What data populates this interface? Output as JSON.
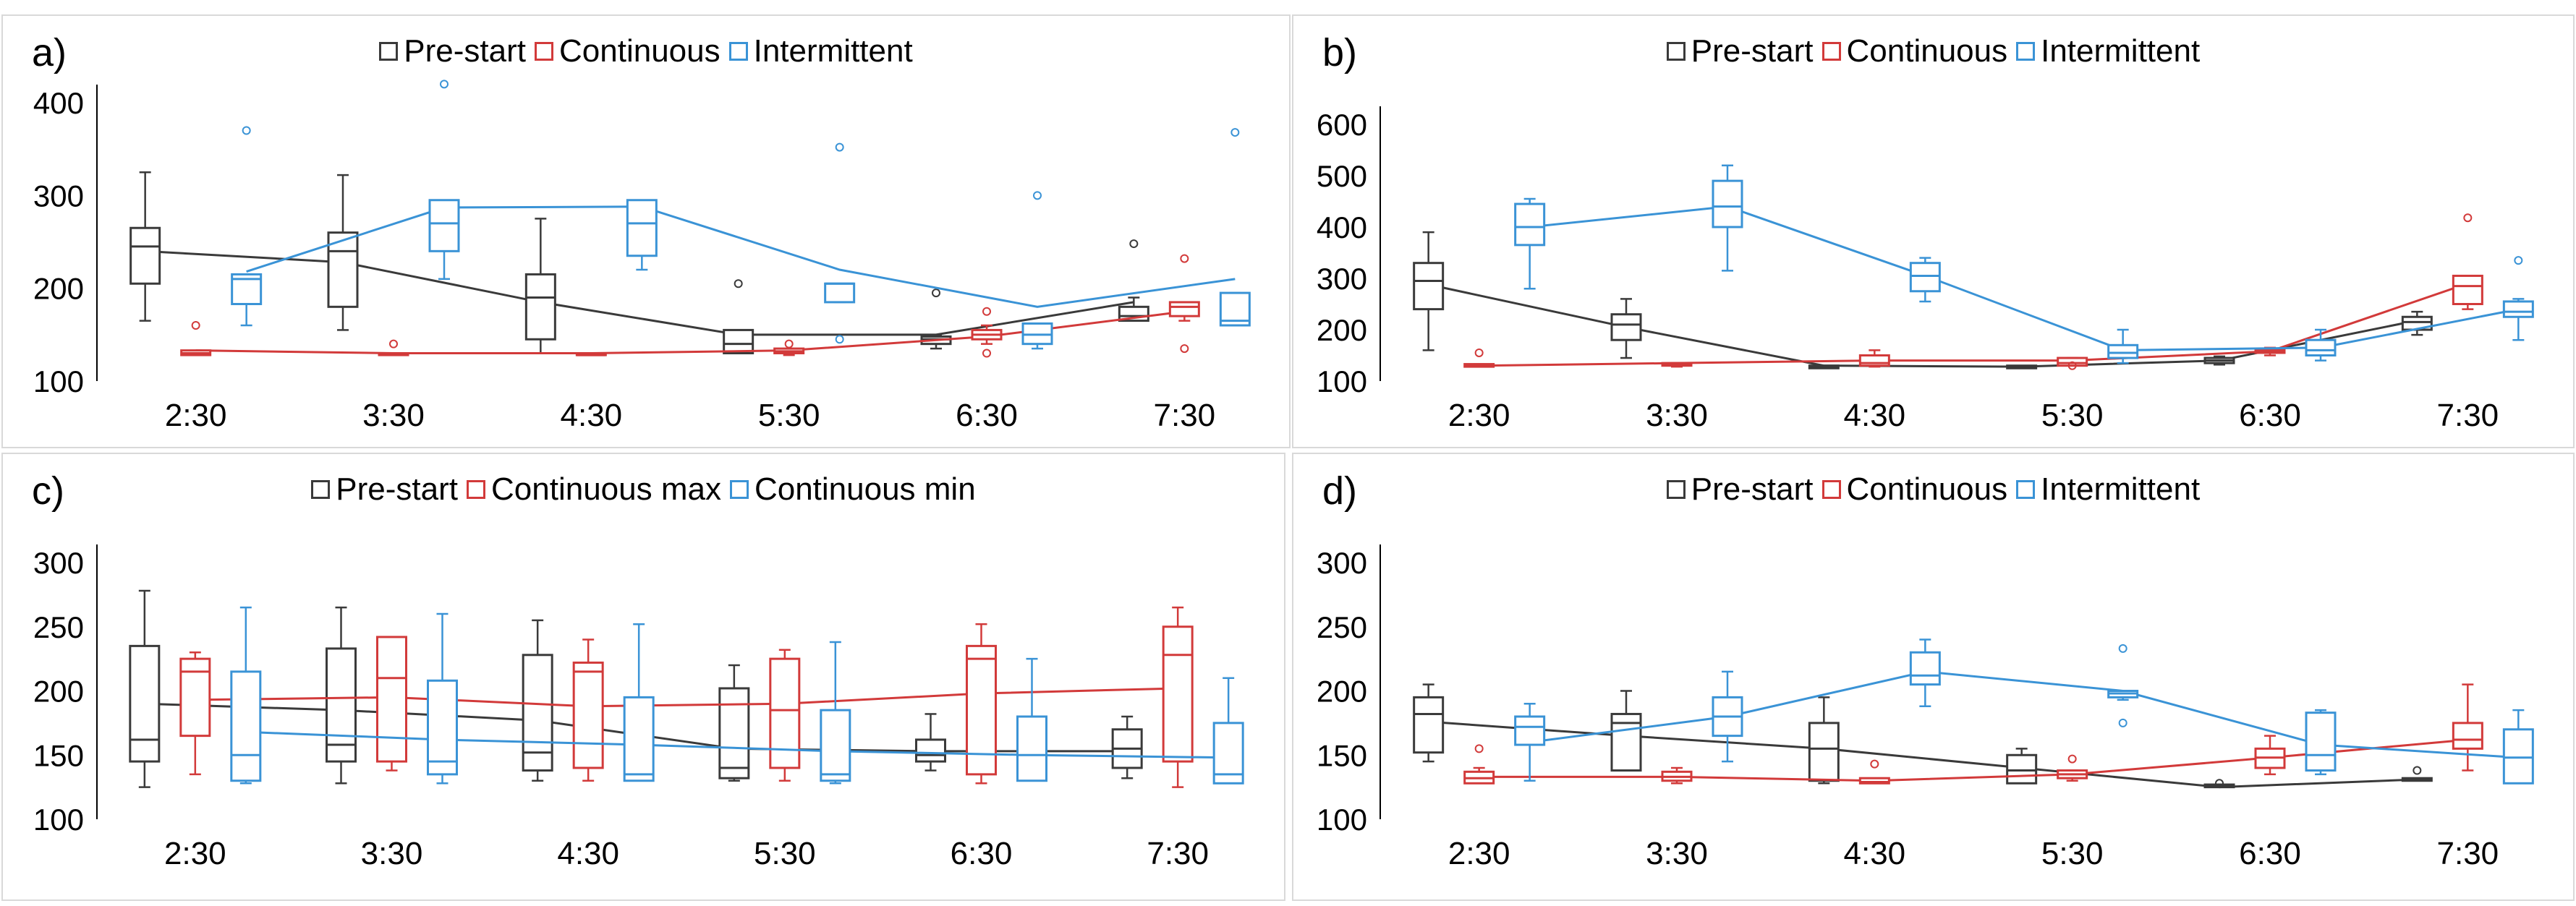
{
  "colors": {
    "pre": "#3a3a3a",
    "cont": "#d23a3a",
    "inter": "#3a93d6",
    "axis": "#000000",
    "frame": "#d9d9d9"
  },
  "chart_data": [
    {
      "panel": "a)",
      "type": "box",
      "categories": [
        "2:30",
        "3:30",
        "4:30",
        "5:30",
        "6:30",
        "7:30"
      ],
      "ylim": [
        100,
        450
      ],
      "yticks": [
        100,
        200,
        300,
        400
      ],
      "legend": [
        "Pre-start",
        "Continuous",
        "Intermittent"
      ],
      "series": [
        {
          "name": "Pre-start",
          "color": "pre",
          "boxes": [
            [
              165,
              205,
              245,
              265,
              325
            ],
            [
              155,
              180,
              240,
              260,
              322
            ],
            [
              130,
              145,
              190,
              215,
              275
            ],
            [
              130,
              130,
              140,
              155,
              155
            ],
            [
              135,
              140,
              145,
              148,
              150
            ],
            [
              165,
              165,
              170,
              180,
              190
            ]
          ],
          "outliers": [
            [],
            [],
            [],
            [
              205
            ],
            [
              195
            ],
            [
              248
            ]
          ],
          "trend": [
            240,
            228,
            185,
            150,
            150,
            185
          ]
        },
        {
          "name": "Continuous",
          "color": "cont",
          "boxes": [
            [
              128,
              128,
              130,
              133,
              133
            ],
            [
              128,
              128,
              130,
              130,
              130
            ],
            [
              128,
              128,
              128,
              130,
              130
            ],
            [
              128,
              130,
              132,
              135,
              135
            ],
            [
              140,
              145,
              150,
              155,
              160
            ],
            [
              165,
              170,
              180,
              185,
              185
            ]
          ],
          "outliers": [
            [
              160
            ],
            [
              140
            ],
            [],
            [
              140
            ],
            [
              130,
              175
            ],
            [
              232,
              135
            ]
          ],
          "trend": [
            133,
            130,
            130,
            133,
            148,
            175
          ]
        },
        {
          "name": "Intermittent",
          "color": "inter",
          "boxes": [
            [
              160,
              183,
              210,
              215,
              215
            ],
            [
              210,
              240,
              270,
              295,
              295
            ],
            [
              220,
              235,
              270,
              295,
              295
            ],
            [
              185,
              185,
              205,
              205,
              205
            ],
            [
              135,
              140,
              150,
              162,
              162
            ],
            [
              160,
              160,
              165,
              195,
              195
            ]
          ],
          "outliers": [
            [
              370
            ],
            [
              420
            ],
            [],
            [
              352,
              145
            ],
            [
              300
            ],
            [
              368
            ]
          ],
          "trend": [
            218,
            287,
            288,
            220,
            180,
            210
          ]
        }
      ]
    },
    {
      "panel": "b)",
      "type": "box",
      "categories": [
        "2:30",
        "3:30",
        "4:30",
        "5:30",
        "6:30",
        "7:30"
      ],
      "ylim": [
        100,
        600
      ],
      "yticks": [
        100,
        200,
        300,
        400,
        500,
        600
      ],
      "legend": [
        "Pre-start",
        "Continuous",
        "Intermittent"
      ],
      "series": [
        {
          "name": "Pre-start",
          "color": "pre",
          "boxes": [
            [
              160,
              240,
              295,
              330,
              390
            ],
            [
              145,
              180,
              210,
              230,
              260
            ],
            [
              125,
              125,
              128,
              130,
              130
            ],
            [
              125,
              125,
              128,
              130,
              130
            ],
            [
              132,
              135,
              140,
              145,
              148
            ],
            [
              190,
              200,
              215,
              225,
              235
            ]
          ],
          "outliers": [
            [],
            [],
            [],
            [],
            [],
            []
          ],
          "trend": [
            288,
            205,
            130,
            128,
            140,
            218
          ]
        },
        {
          "name": "Continuous",
          "color": "cont",
          "boxes": [
            [
              128,
              128,
              130,
              133,
              133
            ],
            [
              128,
              130,
              132,
              135,
              135
            ],
            [
              128,
              130,
              135,
              150,
              160
            ],
            [
              130,
              130,
              135,
              145,
              145
            ],
            [
              150,
              155,
              158,
              162,
              165
            ],
            [
              240,
              250,
              285,
              305,
              305
            ]
          ],
          "outliers": [
            [
              155
            ],
            [],
            [],
            [
              130
            ],
            [],
            [
              418
            ]
          ],
          "trend": [
            130,
            135,
            140,
            140,
            158,
            290
          ]
        },
        {
          "name": "Intermittent",
          "color": "inter",
          "boxes": [
            [
              280,
              365,
              400,
              445,
              455
            ],
            [
              315,
              400,
              440,
              490,
              520
            ],
            [
              255,
              275,
              305,
              330,
              340
            ],
            [
              135,
              145,
              155,
              170,
              200
            ],
            [
              140,
              150,
              160,
              180,
              200
            ],
            [
              180,
              225,
              235,
              255,
              260
            ]
          ],
          "outliers": [
            [],
            [],
            [],
            [],
            [],
            [
              335
            ]
          ],
          "trend": [
            400,
            440,
            305,
            160,
            165,
            240
          ]
        }
      ]
    },
    {
      "panel": "c)",
      "type": "box",
      "categories": [
        "2:30",
        "3:30",
        "4:30",
        "5:30",
        "6:30",
        "7:30"
      ],
      "ylim": [
        100,
        300
      ],
      "yticks": [
        100,
        150,
        200,
        250,
        300
      ],
      "legend": [
        "Pre-start",
        "Continuous max",
        "Continuous min"
      ],
      "series": [
        {
          "name": "Pre-start",
          "color": "pre",
          "boxes": [
            [
              125,
              145,
              162,
              235,
              278
            ],
            [
              128,
              145,
              158,
              233,
              265
            ],
            [
              130,
              138,
              152,
              228,
              255
            ],
            [
              130,
              132,
              140,
              202,
              220
            ],
            [
              138,
              145,
              150,
              162,
              182
            ],
            [
              132,
              140,
              155,
              170,
              180
            ]
          ],
          "outliers": [
            [],
            [],
            [],
            [],
            [],
            []
          ],
          "trend": [
            190,
            185,
            177,
            155,
            153,
            153
          ]
        },
        {
          "name": "Continuous max",
          "color": "cont",
          "boxes": [
            [
              135,
              165,
              215,
              225,
              230
            ],
            [
              138,
              145,
              210,
              242,
              242
            ],
            [
              130,
              140,
              215,
              222,
              240
            ],
            [
              130,
              140,
              185,
              225,
              232
            ],
            [
              128,
              135,
              225,
              235,
              252
            ],
            [
              125,
              145,
              228,
              250,
              265
            ]
          ],
          "outliers": [
            [],
            [],
            [],
            [],
            [],
            []
          ],
          "trend": [
            193,
            195,
            188,
            190,
            198,
            202
          ]
        },
        {
          "name": "Continuous min",
          "color": "cont-min",
          "boxes": [
            [
              128,
              130,
              150,
              215,
              265
            ],
            [
              128,
              135,
              145,
              208,
              260
            ],
            [
              130,
              130,
              135,
              195,
              252
            ],
            [
              128,
              130,
              135,
              185,
              238
            ],
            [
              130,
              130,
              150,
              180,
              225
            ],
            [
              128,
              128,
              135,
              175,
              210
            ]
          ],
          "outliers": [
            [],
            [],
            [],
            [],
            [],
            []
          ],
          "trend": [
            168,
            162,
            158,
            153,
            150,
            148
          ]
        }
      ]
    },
    {
      "panel": "d)",
      "type": "box",
      "categories": [
        "2:30",
        "3:30",
        "4:30",
        "5:30",
        "6:30",
        "7:30"
      ],
      "ylim": [
        100,
        300
      ],
      "yticks": [
        100,
        150,
        200,
        250,
        300
      ],
      "legend": [
        "Pre-start",
        "Continuous",
        "Intermittent"
      ],
      "series": [
        {
          "name": "Pre-start",
          "color": "pre",
          "boxes": [
            [
              145,
              152,
              182,
              195,
              205
            ],
            [
              138,
              138,
              175,
              182,
              200
            ],
            [
              128,
              130,
              155,
              175,
              195
            ],
            [
              128,
              128,
              138,
              150,
              155
            ],
            [
              125,
              125,
              126,
              127,
              127
            ],
            [
              130,
              130,
              131,
              132,
              132
            ]
          ],
          "outliers": [
            [],
            [],
            [],
            [],
            [
              128
            ],
            [
              138
            ]
          ],
          "trend": [
            176,
            165,
            155,
            140,
            125,
            131
          ]
        },
        {
          "name": "Continuous",
          "color": "cont",
          "boxes": [
            [
              128,
              128,
              132,
              137,
              140
            ],
            [
              128,
              130,
              133,
              137,
              140
            ],
            [
              128,
              128,
              129,
              132,
              132
            ],
            [
              130,
              132,
              135,
              138,
              138
            ],
            [
              135,
              140,
              148,
              155,
              165
            ],
            [
              138,
              155,
              162,
              175,
              205
            ]
          ],
          "outliers": [
            [
              155
            ],
            [],
            [
              143
            ],
            [
              147
            ],
            [],
            []
          ],
          "trend": [
            133,
            133,
            130,
            135,
            148,
            162
          ]
        },
        {
          "name": "Intermittent",
          "color": "inter",
          "boxes": [
            [
              130,
              158,
              172,
              180,
              190
            ],
            [
              145,
              165,
              180,
              195,
              215
            ],
            [
              188,
              205,
              212,
              230,
              240
            ],
            [
              193,
              195,
              198,
              200,
              200
            ],
            [
              135,
              138,
              150,
              183,
              185
            ],
            [
              128,
              128,
              148,
              170,
              185
            ]
          ],
          "outliers": [
            [],
            [],
            [],
            [
              233,
              175
            ],
            [],
            []
          ],
          "trend": [
            160,
            180,
            215,
            200,
            158,
            148
          ]
        }
      ]
    }
  ]
}
